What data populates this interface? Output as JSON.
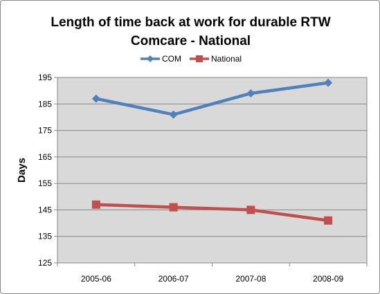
{
  "chart_data": {
    "type": "line",
    "title_line1": "Length of time back at work for durable RTW",
    "title_line2": "Comcare - National",
    "ylabel": "Days",
    "xlabel": "",
    "categories": [
      "2005-06",
      "2006-07",
      "2007-08",
      "2008-09"
    ],
    "ylim": [
      125,
      195
    ],
    "yticks": [
      125,
      135,
      145,
      155,
      165,
      175,
      185,
      195
    ],
    "grid": true,
    "legend_position": "top",
    "series": [
      {
        "name": "COM",
        "values": [
          187,
          181,
          189,
          193
        ],
        "color": "#4F81BD",
        "marker": "diamond"
      },
      {
        "name": "National",
        "values": [
          147,
          146,
          145,
          141
        ],
        "color": "#C0504D",
        "marker": "square"
      }
    ],
    "plot_background": "#D9D9D9"
  }
}
